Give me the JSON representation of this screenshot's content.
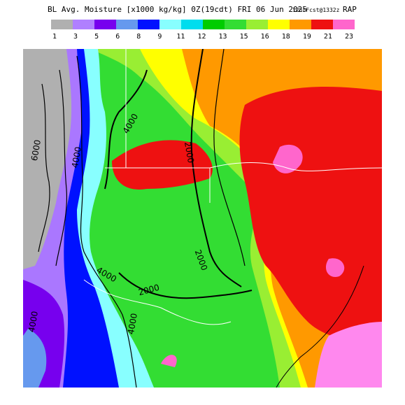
{
  "header": {
    "title": "BL Avg. Moisture [x1000 kg/kg] 0Z(19cdt) FRI 06 Jun 2025",
    "forecast": "12hrFcst@1332z",
    "model": "RAP"
  },
  "legend": {
    "labels": [
      "1",
      "3",
      "5",
      "6",
      "8",
      "9",
      "11",
      "12",
      "13",
      "15",
      "16",
      "18",
      "19",
      "21",
      "23"
    ],
    "colors": [
      "#b0b0b0",
      "#b080ff",
      "#7700ee",
      "#6699ee",
      "#0011ff",
      "#88ffff",
      "#00ddee",
      "#00cc00",
      "#33dd33",
      "#99ee33",
      "#ffff00",
      "#ff9900",
      "#ee1111",
      "#ff66cc"
    ]
  },
  "contour_labels": [
    "4000",
    "6000",
    "4000",
    "2000",
    "2000",
    "4000",
    "2000",
    "4000",
    "4000"
  ]
}
